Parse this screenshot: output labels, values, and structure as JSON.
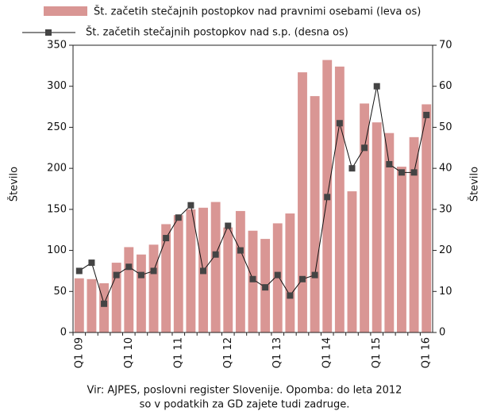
{
  "chart_data": {
    "type": "bar_line",
    "categories": [
      "Q1 09",
      null,
      null,
      null,
      "Q1 10",
      null,
      null,
      null,
      "Q1 11",
      null,
      null,
      null,
      "Q1 12",
      null,
      null,
      null,
      "Q1 13",
      null,
      null,
      null,
      "Q1 14",
      null,
      null,
      null,
      "Q1 15",
      null,
      null,
      null,
      "Q1 16"
    ],
    "series": [
      {
        "name": "Št. začetih stečajnih postopkov nad pravnimi osebami (leva os)",
        "color": "#d99694",
        "type": "bar",
        "values": [
          66,
          65,
          60,
          85,
          104,
          95,
          107,
          132,
          143,
          150,
          152,
          159,
          128,
          148,
          124,
          114,
          133,
          145,
          317,
          288,
          332,
          324,
          172,
          279,
          256,
          243,
          202,
          238,
          278
        ]
      },
      {
        "name": "Št. začetih stečajnih postopkov nad s.p. (desna os)",
        "color": "#111111",
        "marker_color": "#444444",
        "type": "line",
        "axis": "y2",
        "values": [
          15,
          17,
          7,
          14,
          16,
          14,
          15,
          23,
          28,
          31,
          15,
          19,
          26,
          20,
          13,
          11,
          14,
          9,
          13,
          14,
          33,
          51,
          40,
          45,
          60,
          41,
          39,
          39,
          53
        ]
      }
    ],
    "ylabel": "Število",
    "y2label": "Število",
    "ylim": [
      0,
      350
    ],
    "yticks": [
      0,
      50,
      100,
      150,
      200,
      250,
      300,
      350
    ],
    "y2lim": [
      0,
      70
    ],
    "y2ticks": [
      0,
      10,
      20,
      30,
      40,
      50,
      60,
      70
    ],
    "notes": [
      "Vir: AJPES, poslovni register Slovenije. Opomba: do leta 2012",
      "so v podatkih za GD  zajete tudi zadruge."
    ]
  }
}
